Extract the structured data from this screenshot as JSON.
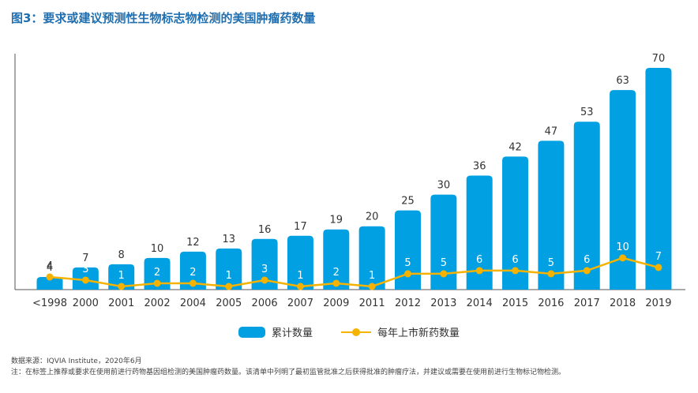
{
  "title": "图3：要求或建议预测性生物标志物检测的美国肿瘤药数量",
  "legend": {
    "cumulative": "累计数量",
    "annual": "每年上市新药数量"
  },
  "notes": {
    "source": "数据来源：IQVIA Institute，2020年6月",
    "footnote": "注：在标签上推荐或要求在使用前进行药物基因组检测的美国肿瘤药数量。该清单中列明了最初监管批准之后获得批准的肿瘤疗法，并建议或需要在使用前进行生物标记物检测。"
  },
  "colors": {
    "bar": "#00a0e3",
    "line": "#f5b200",
    "title": "#1f6fb0"
  },
  "chart_data": {
    "type": "bar",
    "categories": [
      "<1998",
      "2000",
      "2001",
      "2002",
      "2004",
      "2005",
      "2006",
      "2007",
      "2009",
      "2011",
      "2012",
      "2013",
      "2014",
      "2015",
      "2016",
      "2017",
      "2018",
      "2019"
    ],
    "series": [
      {
        "name": "累计数量",
        "type": "bar",
        "values": [
          4,
          7,
          8,
          10,
          12,
          13,
          16,
          17,
          19,
          20,
          25,
          30,
          36,
          42,
          47,
          53,
          63,
          70
        ]
      },
      {
        "name": "每年上市新药数量",
        "type": "line",
        "values": [
          4,
          3,
          1,
          2,
          2,
          1,
          3,
          1,
          2,
          1,
          5,
          5,
          6,
          6,
          5,
          6,
          10,
          7
        ]
      }
    ],
    "ylim": [
      0,
      70
    ],
    "grid": false,
    "legend_position": "bottom"
  }
}
